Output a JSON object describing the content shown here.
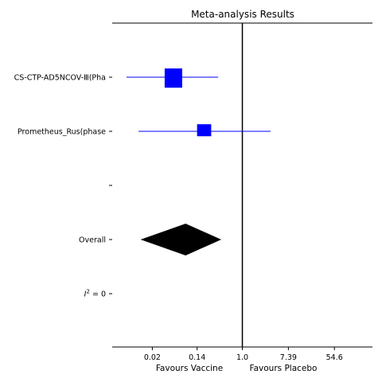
{
  "chart_data": {
    "type": "forest",
    "title": "Meta-analysis Results",
    "x_scale": "log",
    "x_range": [
      0.0035,
      285
    ],
    "x_ticks": [
      {
        "value": 0.02,
        "label": "0.02"
      },
      {
        "value": 0.14,
        "label": "0.14"
      },
      {
        "value": 1.0,
        "label": "1.0"
      },
      {
        "value": 7.39,
        "label": "7.39"
      },
      {
        "value": 54.6,
        "label": "54.6"
      }
    ],
    "x_label_left": "Favours Vaccine",
    "x_label_right": "Favours Placebo",
    "reference_line": 1.0,
    "rows": [
      {
        "label": "CS-CTP-AD5NCOV-Ⅲ(Pha",
        "estimate": 0.05,
        "ci_low": 0.0065,
        "ci_high": 0.35,
        "weight": 1.0,
        "color": "#0000ff"
      },
      {
        "label": "Prometheus_Rus(phase",
        "estimate": 0.19,
        "ci_low": 0.011,
        "ci_high": 3.4,
        "weight": 0.65,
        "color": "#0000ff"
      },
      {
        "label": ""
      },
      {
        "label": "Overall",
        "summary": true,
        "estimate": 0.085,
        "ci_low": 0.012,
        "ci_high": 0.4,
        "color": "#000000"
      },
      {
        "label": "I² = 0",
        "stat": true
      }
    ],
    "grid": false
  }
}
